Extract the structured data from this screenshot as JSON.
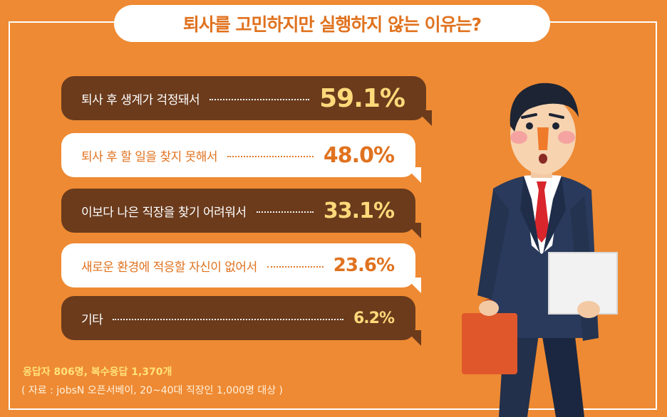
{
  "title": "퇴사를 고민하지만 실행하지 않는 이유는?",
  "chart_data": {
    "type": "bar",
    "title": "퇴사를 고민하지만 실행하지 않는 이유는?",
    "categories": [
      "퇴사 후 생계가 걱정돼서",
      "퇴사 후 할 일을 찾지 못해서",
      "이보다 나은 직장을 찾기 어려워서",
      "새로운 환경에 적응할 자신이 없어서",
      "기타"
    ],
    "values": [
      59.1,
      48.0,
      33.1,
      23.6,
      6.2
    ],
    "value_labels": [
      "59.1%",
      "48.0%",
      "33.1%",
      "23.6%",
      "6.2%"
    ],
    "styles": [
      "dark",
      "light",
      "dark",
      "light",
      "dark"
    ]
  },
  "notes": {
    "respondents": "응답자 806명, 복수응답 1,370개",
    "source": "( 자료 : jobsN 오픈서베이, 20~40대 직장인 1,000명 대상 )"
  },
  "colors": {
    "background": "#ee8a33",
    "dark_bubble": "#6b3b1c",
    "highlight": "#ffd97a",
    "accent": "#e0721f"
  }
}
